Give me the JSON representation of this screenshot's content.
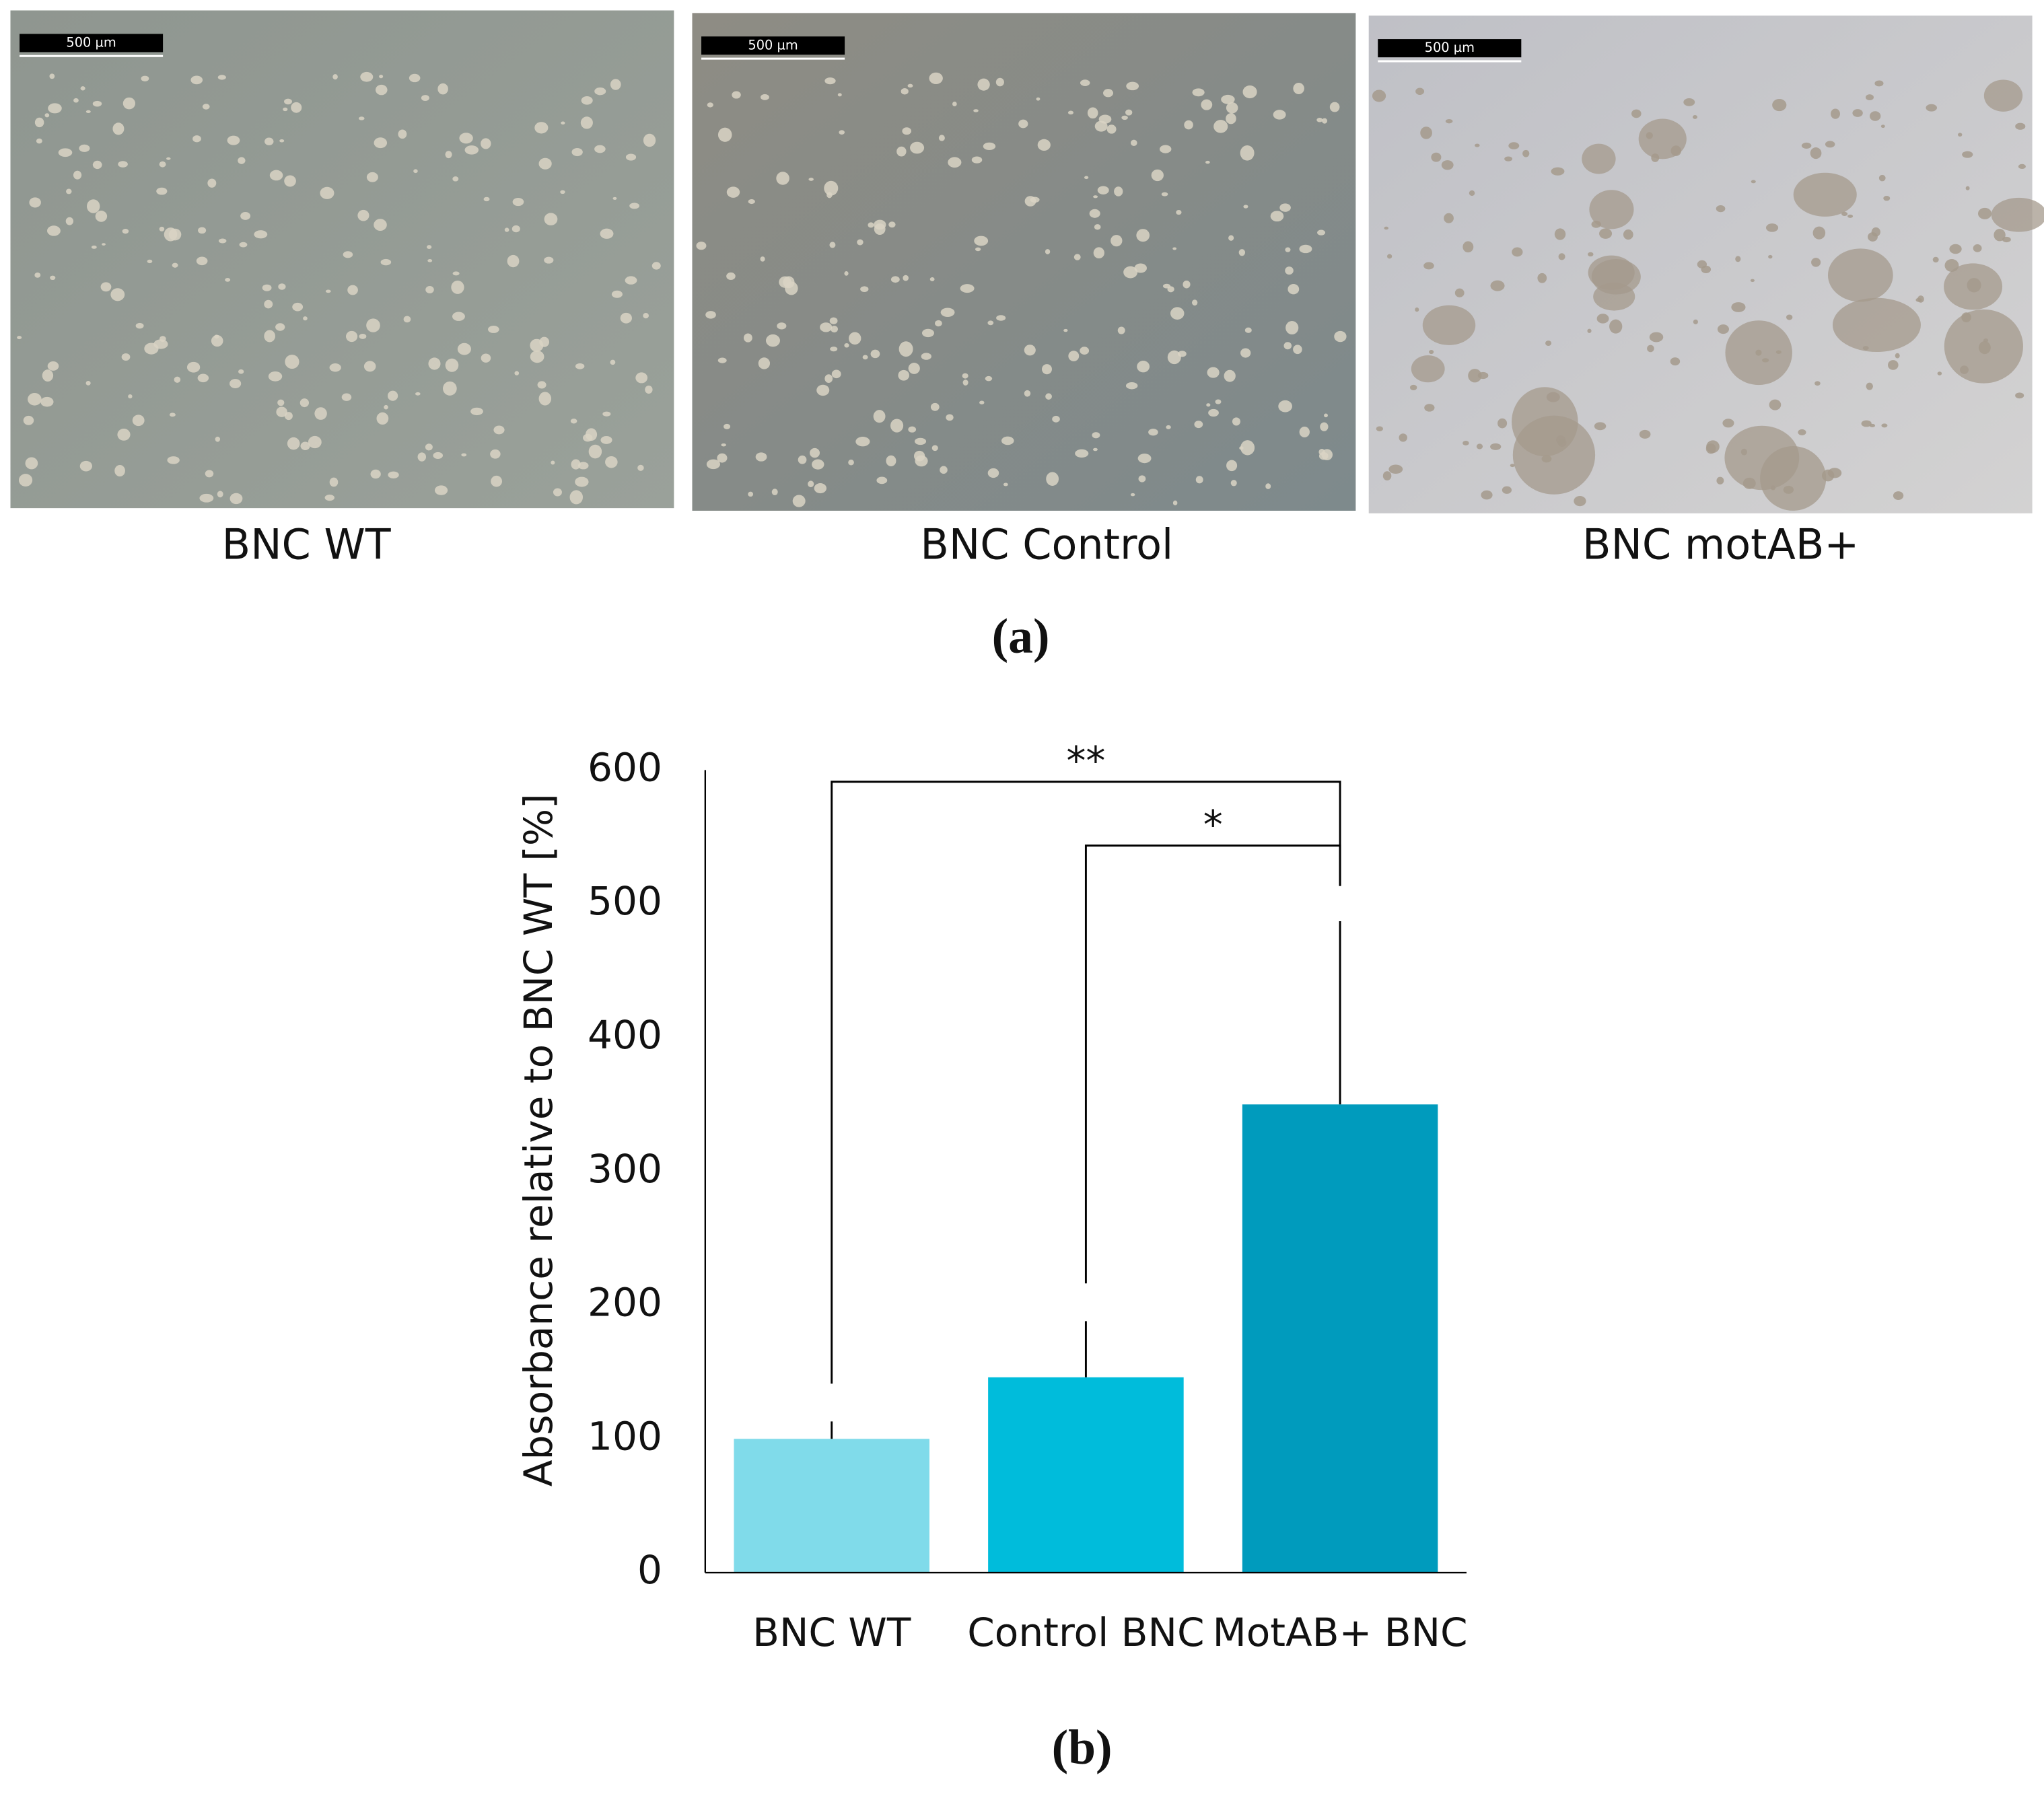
{
  "panels": {
    "a": {
      "label": "(a)",
      "images": [
        {
          "caption": "BNC WT",
          "scale_bar": "500 µm"
        },
        {
          "caption": "BNC Control",
          "scale_bar": "500 µm"
        },
        {
          "caption": "BNC motAB+",
          "scale_bar": "500 µm"
        }
      ]
    },
    "b": {
      "label": "(b)"
    }
  },
  "chart_data": {
    "type": "bar",
    "y_label": "Absorbance relative to BNC WT [%]",
    "categories": [
      "BNC WT",
      "Control BNC",
      "MotAB+ BNC"
    ],
    "values": [
      100,
      146,
      350
    ],
    "errors": [
      13,
      42,
      137
    ],
    "colors": [
      "#80dbea",
      "#00bcdb",
      "#009bbd"
    ],
    "ylim": [
      0,
      600
    ],
    "yticks": [
      0,
      100,
      200,
      300,
      400,
      500,
      600
    ],
    "grid": false,
    "significance": [
      {
        "pair": [
          "BNC WT",
          "MotAB+ BNC"
        ],
        "label": "**"
      },
      {
        "pair": [
          "Control BNC",
          "MotAB+ BNC"
        ],
        "label": "*"
      }
    ]
  }
}
